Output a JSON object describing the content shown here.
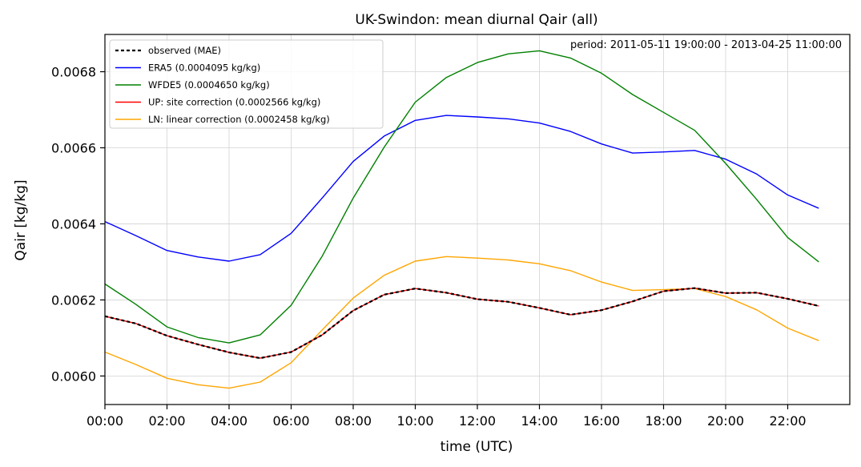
{
  "chart_data": {
    "type": "line",
    "title": "UK-Swindon: mean diurnal Qair (all)",
    "xlabel": "time (UTC)",
    "ylabel": "Qair [kg/kg]",
    "annotation": "period: 2011-05-11 19:00:00 - 2013-04-25 11:00:00",
    "x_hours": [
      0,
      1,
      2,
      3,
      4,
      5,
      6,
      7,
      8,
      9,
      10,
      11,
      12,
      13,
      14,
      15,
      16,
      17,
      18,
      19,
      20,
      21,
      22,
      23
    ],
    "xticks": [
      "00:00",
      "02:00",
      "04:00",
      "06:00",
      "08:00",
      "10:00",
      "12:00",
      "14:00",
      "16:00",
      "18:00",
      "20:00",
      "22:00"
    ],
    "xlim": [
      0,
      24
    ],
    "yticks": [
      "0.0060",
      "0.0062",
      "0.0064",
      "0.0066",
      "0.0068"
    ],
    "ylim": [
      0.005925,
      0.006898
    ],
    "grid": true,
    "legend_position": "top-left",
    "series": [
      {
        "name": "observed (MAE)",
        "color": "#000000",
        "style": "dashed",
        "values": [
          0.006157,
          0.006138,
          0.006106,
          0.006083,
          0.006062,
          0.006047,
          0.006063,
          0.006108,
          0.006172,
          0.006214,
          0.00623,
          0.006219,
          0.006202,
          0.006195,
          0.006179,
          0.006161,
          0.006173,
          0.006196,
          0.006223,
          0.006231,
          0.006218,
          0.006219,
          0.006203,
          0.006184
        ]
      },
      {
        "name": "ERA5 (0.0004095 kg/kg)",
        "color": "#0000ff",
        "style": "solid",
        "values": [
          0.006406,
          0.006369,
          0.00633,
          0.006313,
          0.006302,
          0.006319,
          0.006375,
          0.006468,
          0.006564,
          0.006631,
          0.006672,
          0.006685,
          0.006681,
          0.006676,
          0.006665,
          0.006643,
          0.00661,
          0.006586,
          0.006589,
          0.006593,
          0.00657,
          0.006531,
          0.006476,
          0.006441
        ]
      },
      {
        "name": "WFDE5 (0.0004650 kg/kg)",
        "color": "#008000",
        "style": "solid",
        "values": [
          0.006242,
          0.006188,
          0.006129,
          0.006101,
          0.006087,
          0.006108,
          0.006186,
          0.006315,
          0.006468,
          0.006602,
          0.00672,
          0.006785,
          0.006824,
          0.006847,
          0.006855,
          0.006836,
          0.006796,
          0.00674,
          0.006693,
          0.006646,
          0.006559,
          0.006464,
          0.006364,
          0.0063
        ]
      },
      {
        "name": "UP: site correction (0.0002566 kg/kg)",
        "color": "#ff0000",
        "style": "solid",
        "values": [
          0.006157,
          0.006138,
          0.006106,
          0.006083,
          0.006062,
          0.006047,
          0.006063,
          0.006108,
          0.006172,
          0.006214,
          0.00623,
          0.006219,
          0.006202,
          0.006195,
          0.006179,
          0.006161,
          0.006173,
          0.006196,
          0.006223,
          0.006231,
          0.006218,
          0.006219,
          0.006203,
          0.006184
        ]
      },
      {
        "name": "LN: linear correction (0.0002458 kg/kg)",
        "color": "#ffa500",
        "style": "solid",
        "values": [
          0.006063,
          0.00603,
          0.005994,
          0.005977,
          0.005968,
          0.005984,
          0.006035,
          0.006121,
          0.006205,
          0.006265,
          0.006302,
          0.006314,
          0.00631,
          0.006305,
          0.006295,
          0.006277,
          0.006247,
          0.006225,
          0.006227,
          0.00623,
          0.006209,
          0.006174,
          0.006126,
          0.006093
        ]
      }
    ]
  }
}
